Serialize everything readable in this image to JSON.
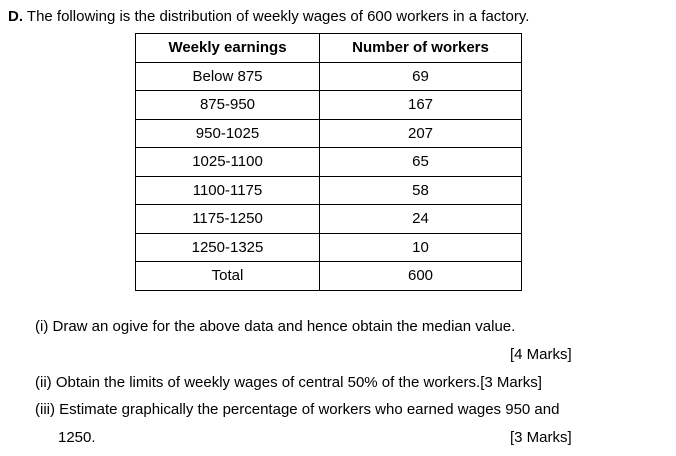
{
  "header": {
    "label": "D.",
    "text": "The following is the distribution of weekly wages of 600 workers in a factory."
  },
  "table": {
    "columns": [
      "Weekly earnings",
      "Number of workers"
    ],
    "rows": [
      [
        "Below 875",
        69
      ],
      [
        "875-950",
        167
      ],
      [
        "950-1025",
        207
      ],
      [
        "1025-1100",
        65
      ],
      [
        "1100-1175",
        58
      ],
      [
        "1175-1250",
        24
      ],
      [
        "1250-1325",
        10
      ],
      [
        "Total",
        600
      ]
    ]
  },
  "questions": [
    {
      "text": "(i)  Draw an ogive for the above data and hence obtain the median value.",
      "marks": "[4 Marks]"
    },
    {
      "text": "(ii) Obtain the limits of weekly wages of central 50% of the workers.",
      "marks": "[3 Marks]"
    },
    {
      "text": "(iii) Estimate graphically the percentage of workers who earned wages 950 and",
      "continuation": "1250.",
      "marks": "[3 Marks]"
    }
  ]
}
